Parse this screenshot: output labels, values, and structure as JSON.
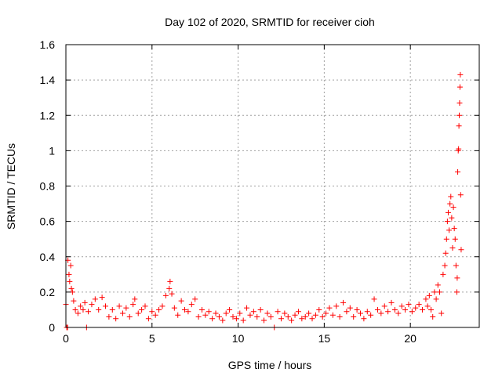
{
  "chart_data": {
    "type": "scatter",
    "title": "Day 102 of 2020, SRMTID for receiver cioh",
    "xlabel": "GPS time / hours",
    "ylabel": "SRMTID / TECUs",
    "xlim": [
      0,
      24
    ],
    "ylim": [
      0,
      1.6
    ],
    "xticks": [
      0,
      5,
      10,
      15,
      20
    ],
    "xtick_labels": [
      "0",
      "5",
      "10",
      "15",
      "20"
    ],
    "yticks": [
      0,
      0.2,
      0.4,
      0.6,
      0.8,
      1,
      1.2,
      1.4,
      1.6
    ],
    "ytick_labels": [
      "0",
      "0.2",
      "0.4",
      "0.6",
      "0.8",
      "1",
      "1.2",
      "1.4",
      "1.6"
    ],
    "grid": true,
    "marker": "+",
    "series": [
      {
        "name": "SRMTID",
        "color": "#ff0000",
        "points": [
          [
            0.0,
            0.13
          ],
          [
            0.05,
            0.0
          ],
          [
            0.1,
            0.0
          ],
          [
            0.12,
            0.38
          ],
          [
            0.18,
            0.3
          ],
          [
            0.22,
            0.26
          ],
          [
            0.28,
            0.35
          ],
          [
            0.32,
            0.22
          ],
          [
            0.38,
            0.2
          ],
          [
            0.45,
            0.15
          ],
          [
            0.55,
            0.1
          ],
          [
            0.7,
            0.08
          ],
          [
            0.85,
            0.12
          ],
          [
            1.0,
            0.1
          ],
          [
            1.1,
            0.14
          ],
          [
            1.2,
            0.0
          ],
          [
            1.3,
            0.09
          ],
          [
            1.5,
            0.13
          ],
          [
            1.7,
            0.16
          ],
          [
            1.9,
            0.1
          ],
          [
            2.1,
            0.17
          ],
          [
            2.3,
            0.12
          ],
          [
            2.5,
            0.06
          ],
          [
            2.7,
            0.1
          ],
          [
            2.9,
            0.05
          ],
          [
            3.1,
            0.12
          ],
          [
            3.3,
            0.08
          ],
          [
            3.5,
            0.11
          ],
          [
            3.7,
            0.06
          ],
          [
            3.9,
            0.13
          ],
          [
            4.0,
            0.16
          ],
          [
            4.2,
            0.08
          ],
          [
            4.4,
            0.1
          ],
          [
            4.6,
            0.12
          ],
          [
            4.8,
            0.05
          ],
          [
            5.0,
            0.09
          ],
          [
            5.2,
            0.07
          ],
          [
            5.4,
            0.1
          ],
          [
            5.6,
            0.12
          ],
          [
            5.8,
            0.18
          ],
          [
            6.0,
            0.22
          ],
          [
            6.05,
            0.26
          ],
          [
            6.15,
            0.19
          ],
          [
            6.3,
            0.11
          ],
          [
            6.5,
            0.07
          ],
          [
            6.7,
            0.15
          ],
          [
            6.9,
            0.1
          ],
          [
            7.1,
            0.09
          ],
          [
            7.3,
            0.13
          ],
          [
            7.5,
            0.16
          ],
          [
            7.7,
            0.06
          ],
          [
            7.9,
            0.1
          ],
          [
            8.1,
            0.07
          ],
          [
            8.3,
            0.09
          ],
          [
            8.5,
            0.05
          ],
          [
            8.7,
            0.08
          ],
          [
            8.9,
            0.06
          ],
          [
            9.1,
            0.04
          ],
          [
            9.3,
            0.08
          ],
          [
            9.5,
            0.1
          ],
          [
            9.7,
            0.06
          ],
          [
            9.9,
            0.05
          ],
          [
            10.1,
            0.08
          ],
          [
            10.3,
            0.04
          ],
          [
            10.5,
            0.11
          ],
          [
            10.7,
            0.07
          ],
          [
            10.9,
            0.09
          ],
          [
            11.1,
            0.06
          ],
          [
            11.3,
            0.1
          ],
          [
            11.5,
            0.04
          ],
          [
            11.7,
            0.08
          ],
          [
            11.9,
            0.06
          ],
          [
            12.1,
            0.0
          ],
          [
            12.3,
            0.09
          ],
          [
            12.5,
            0.05
          ],
          [
            12.7,
            0.08
          ],
          [
            12.9,
            0.06
          ],
          [
            13.1,
            0.04
          ],
          [
            13.3,
            0.07
          ],
          [
            13.5,
            0.09
          ],
          [
            13.7,
            0.05
          ],
          [
            13.9,
            0.06
          ],
          [
            14.1,
            0.08
          ],
          [
            14.3,
            0.05
          ],
          [
            14.5,
            0.07
          ],
          [
            14.7,
            0.1
          ],
          [
            14.9,
            0.06
          ],
          [
            15.1,
            0.08
          ],
          [
            15.3,
            0.11
          ],
          [
            15.5,
            0.07
          ],
          [
            15.7,
            0.12
          ],
          [
            15.9,
            0.06
          ],
          [
            16.1,
            0.14
          ],
          [
            16.3,
            0.09
          ],
          [
            16.5,
            0.11
          ],
          [
            16.7,
            0.06
          ],
          [
            16.9,
            0.1
          ],
          [
            17.1,
            0.08
          ],
          [
            17.3,
            0.05
          ],
          [
            17.5,
            0.09
          ],
          [
            17.7,
            0.07
          ],
          [
            17.9,
            0.16
          ],
          [
            18.1,
            0.1
          ],
          [
            18.3,
            0.08
          ],
          [
            18.5,
            0.12
          ],
          [
            18.7,
            0.09
          ],
          [
            18.9,
            0.14
          ],
          [
            19.1,
            0.1
          ],
          [
            19.3,
            0.08
          ],
          [
            19.5,
            0.12
          ],
          [
            19.7,
            0.1
          ],
          [
            19.9,
            0.13
          ],
          [
            20.1,
            0.09
          ],
          [
            20.3,
            0.11
          ],
          [
            20.5,
            0.13
          ],
          [
            20.7,
            0.1
          ],
          [
            20.9,
            0.16
          ],
          [
            21.0,
            0.12
          ],
          [
            21.1,
            0.18
          ],
          [
            21.2,
            0.1
          ],
          [
            21.3,
            0.06
          ],
          [
            21.4,
            0.2
          ],
          [
            21.5,
            0.16
          ],
          [
            21.6,
            0.24
          ],
          [
            21.7,
            0.2
          ],
          [
            21.8,
            0.08
          ],
          [
            21.9,
            0.3
          ],
          [
            22.0,
            0.35
          ],
          [
            22.05,
            0.42
          ],
          [
            22.1,
            0.5
          ],
          [
            22.15,
            0.6
          ],
          [
            22.2,
            0.65
          ],
          [
            22.25,
            0.55
          ],
          [
            22.3,
            0.7
          ],
          [
            22.35,
            0.74
          ],
          [
            22.4,
            0.62
          ],
          [
            22.45,
            0.45
          ],
          [
            22.5,
            0.68
          ],
          [
            22.55,
            0.56
          ],
          [
            22.6,
            0.5
          ],
          [
            22.65,
            0.35
          ],
          [
            22.7,
            0.2
          ],
          [
            22.72,
            0.28
          ],
          [
            22.75,
            0.88
          ],
          [
            22.78,
            1.0
          ],
          [
            22.8,
            1.01
          ],
          [
            22.82,
            1.14
          ],
          [
            22.84,
            1.2
          ],
          [
            22.86,
            1.27
          ],
          [
            22.88,
            1.36
          ],
          [
            22.9,
            1.43
          ],
          [
            22.92,
            0.75
          ],
          [
            22.95,
            0.44
          ]
        ]
      }
    ]
  }
}
